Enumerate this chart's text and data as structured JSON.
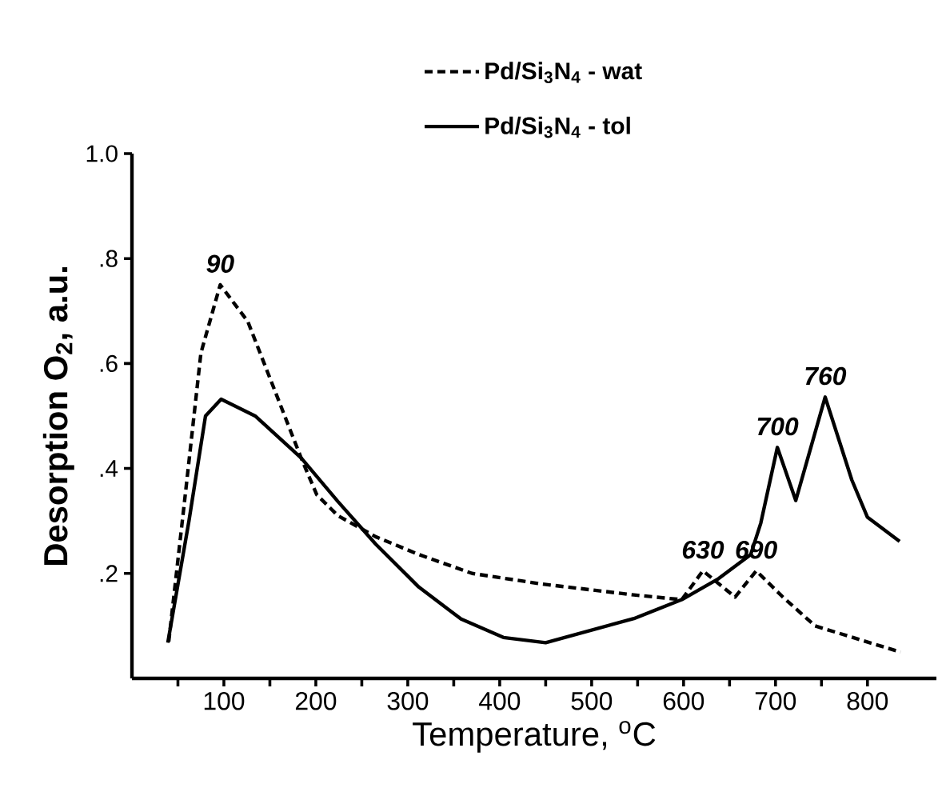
{
  "chart_data": {
    "type": "line",
    "xlabel": "Temperature, $^{o}$C",
    "ylabel": "Desorption O$_{2}$, a.u.",
    "xlim": [
      0,
      875
    ],
    "ylim": [
      0,
      1
    ],
    "xticks": [
      {
        "value": 50,
        "label": null
      },
      100,
      {
        "value": 150,
        "label": null
      },
      200,
      {
        "value": 250,
        "label": null
      },
      300,
      {
        "value": 350,
        "label": null
      },
      400,
      {
        "value": 450,
        "label": null
      },
      500,
      {
        "value": 550,
        "label": null
      },
      600,
      {
        "value": 650,
        "label": null
      },
      700,
      {
        "value": 750,
        "label": null
      },
      800
    ],
    "yticks": [
      {
        "value": 0.2,
        "label": ".2"
      },
      {
        "value": 0.4,
        "label": ".4"
      },
      {
        "value": 0.6,
        "label": ".6"
      },
      {
        "value": 0.8,
        "label": ".8"
      },
      {
        "value": 1.0,
        "label": "1.0"
      }
    ],
    "legend": "top",
    "grid": false,
    "marker": "none",
    "series": [
      {
        "name": "Pd/Si$_{3}$N$_{4}$ - wat",
        "color": "#000000",
        "line_style": "dashed",
        "x": [
          40,
          58,
          75,
          96,
          126,
          155,
          184,
          201,
          224,
          265,
          312,
          370,
          445,
          546,
          598,
          621,
          656,
          679,
          708,
          743,
          836
        ],
        "values": [
          0.07,
          0.35,
          0.62,
          0.75,
          0.68,
          0.55,
          0.42,
          0.35,
          0.31,
          0.27,
          0.236,
          0.2,
          0.18,
          0.159,
          0.15,
          0.205,
          0.155,
          0.205,
          0.155,
          0.1,
          0.05
        ]
      },
      {
        "name": "Pd/Si$_{3}$N$_{4}$ - tol",
        "color": "#000000",
        "line_style": "solid",
        "x": [
          39,
          62,
          80,
          97,
          134,
          184,
          224,
          265,
          312,
          358,
          404,
          450,
          546,
          598,
          638,
          673,
          684,
          702,
          722,
          754,
          783,
          800,
          835
        ],
        "values": [
          0.068,
          0.3,
          0.5,
          0.532,
          0.5,
          0.42,
          0.337,
          0.256,
          0.174,
          0.113,
          0.078,
          0.068,
          0.114,
          0.15,
          0.19,
          0.236,
          0.296,
          0.44,
          0.339,
          0.536,
          0.378,
          0.307,
          0.261
        ]
      }
    ],
    "annotations": [
      {
        "text": "90",
        "x": 96,
        "y": 0.75
      },
      {
        "text": "630",
        "x": 621,
        "y": 0.205
      },
      {
        "text": "690",
        "x": 679,
        "y": 0.205
      },
      {
        "text": "700",
        "x": 702,
        "y": 0.44
      },
      {
        "text": "760",
        "x": 754,
        "y": 0.536
      }
    ]
  }
}
